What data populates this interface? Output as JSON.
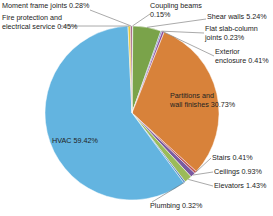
{
  "chart_data": {
    "type": "pie",
    "categories": [
      "Coupling beams",
      "Shear walls",
      "Flat slab-column joints",
      "Exterior enclosure",
      "Partitions and wall finishes",
      "Stairs",
      "Ceilings",
      "Elevators",
      "Plumbing",
      "HVAC",
      "Fire protection and electrical service",
      "Moment frame joints"
    ],
    "values": [
      0.15,
      5.24,
      0.23,
      0.41,
      30.73,
      0.41,
      0.93,
      1.43,
      0.32,
      59.42,
      0.45,
      0.28
    ],
    "value_labels": [
      "0.15%",
      "5.24%",
      "0.23%",
      "0.41%",
      "30.73%",
      "0.41%",
      "0.93%",
      "1.43%",
      "0.32%",
      "59.42%",
      "0.45%",
      "0.28%"
    ],
    "colors": [
      "#a6a6c8",
      "#7aa34a",
      "#4a6fb0",
      "#8a4a9a",
      "#d8823a",
      "#c0504d",
      "#7a5aa0",
      "#9bbb59",
      "#4f81bd",
      "#63b4e0",
      "#e8c840",
      "#8b3a62"
    ],
    "data_labels": true
  }
}
